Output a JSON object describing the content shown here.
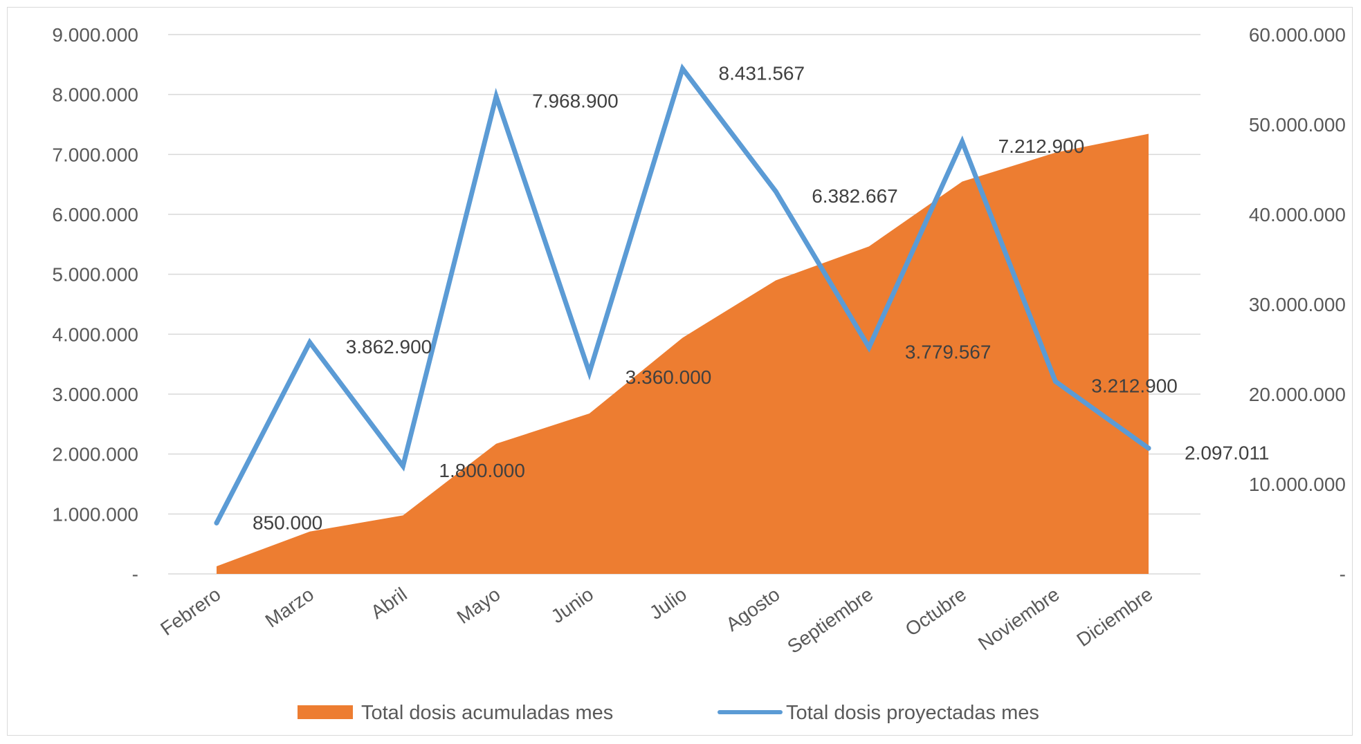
{
  "chart_data": {
    "type": "line",
    "categories": [
      "Febrero",
      "Marzo",
      "Abril",
      "Mayo",
      "Junio",
      "Julio",
      "Agosto",
      "Septiembre",
      "Octubre",
      "Noviembre",
      "Diciembre"
    ],
    "series": [
      {
        "name": "Total dosis acumuladas mes",
        "chart_type": "area",
        "axis": "right",
        "color": "#ED7D31",
        "values": [
          850000,
          4712900,
          6512900,
          14481800,
          17841800,
          26273367,
          32656034,
          36435601,
          43648501,
          46861401,
          48958412
        ]
      },
      {
        "name": "Total dosis proyectadas mes",
        "chart_type": "line",
        "axis": "left",
        "color": "#5B9BD5",
        "values": [
          850000,
          3862900,
          1800000,
          7968900,
          3360000,
          8431567,
          6382667,
          3779567,
          7212900,
          3212900,
          2097011
        ]
      }
    ],
    "data_labels": [
      "850.000",
      "3.862.900",
      "1.800.000",
      "7.968.900",
      "3.360.000",
      "8.431.567",
      "6.382.667",
      "3.779.567",
      "7.212.900",
      "3.212.900",
      "2.097.011"
    ],
    "y_left": {
      "ylim": [
        0,
        9000000
      ],
      "ticks": [
        0,
        1000000,
        2000000,
        3000000,
        4000000,
        5000000,
        6000000,
        7000000,
        8000000,
        9000000
      ],
      "tick_labels": [
        "-",
        "1.000.000",
        "2.000.000",
        "3.000.000",
        "4.000.000",
        "5.000.000",
        "6.000.000",
        "7.000.000",
        "8.000.000",
        "9.000.000"
      ]
    },
    "y_right": {
      "ylim": [
        0,
        60000000
      ],
      "ticks": [
        0,
        10000000,
        20000000,
        30000000,
        40000000,
        50000000,
        60000000
      ],
      "tick_labels": [
        "-",
        "10.000.000",
        "20.000.000",
        "30.000.000",
        "40.000.000",
        "50.000.000",
        "60.000.000"
      ]
    },
    "title": "",
    "xlabel": "",
    "ylabel": "",
    "grid": true,
    "legend_position": "bottom",
    "gridline_color": "#D9D9D9"
  }
}
